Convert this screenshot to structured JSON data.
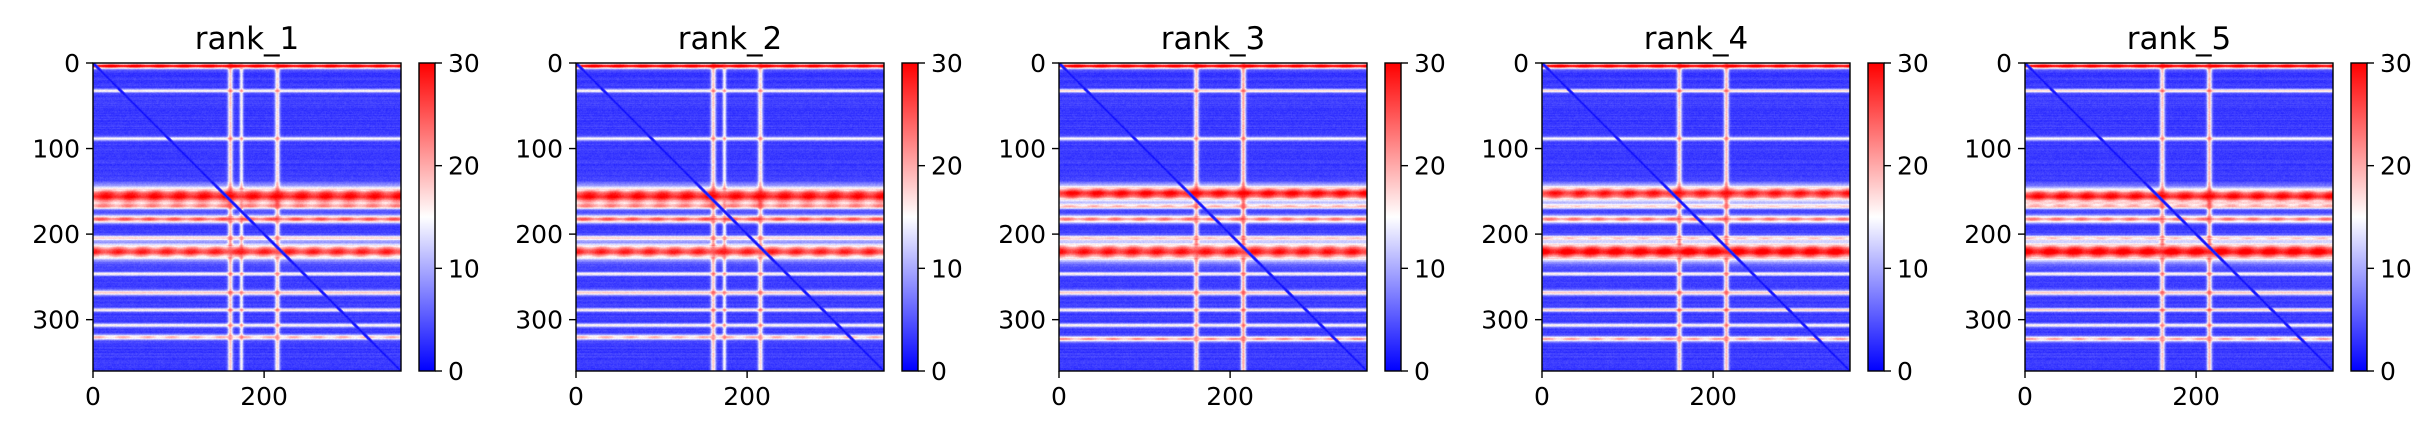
{
  "chart_data": [
    {
      "type": "heatmap",
      "title": "rank_1",
      "matrix_size": 360,
      "x_ticks": [
        0,
        200
      ],
      "y_ticks": [
        0,
        100,
        200,
        300
      ],
      "colorbar": {
        "min": 0,
        "max": 30,
        "ticks": [
          0,
          10,
          20,
          30
        ],
        "colormap": "bwr"
      },
      "description": "Pairwise matrix; mostly low values (blue) with a diagonal line, vertical low-mid streaks near x=160 and x=215, and high-value (red) horizontal bands near y=155 and y=220 with a weaker band near y=180.",
      "features": {
        "background": 2,
        "h_bands": [
          [
            3,
            30,
            2
          ],
          [
            32,
            12,
            1.5
          ],
          [
            88,
            12,
            1.5
          ],
          [
            155,
            27,
            7
          ],
          [
            167,
            14,
            2
          ],
          [
            182,
            22,
            3
          ],
          [
            204,
            14,
            2
          ],
          [
            220,
            25,
            6
          ],
          [
            246,
            13,
            1.5
          ],
          [
            268,
            15,
            2
          ],
          [
            288,
            13,
            1.5
          ],
          [
            306,
            13,
            1.5
          ],
          [
            320,
            17,
            2
          ]
        ],
        "v_bands": [
          [
            160,
            15,
            2
          ],
          [
            173,
            12,
            1.5
          ],
          [
            215,
            14,
            2
          ]
        ],
        "diag_value": 0
      }
    },
    {
      "type": "heatmap",
      "title": "rank_2",
      "matrix_size": 360,
      "x_ticks": [
        0,
        200
      ],
      "y_ticks": [
        0,
        100,
        200,
        300
      ],
      "colorbar": {
        "min": 0,
        "max": 30,
        "ticks": [
          0,
          10,
          20,
          30
        ],
        "colormap": "bwr"
      },
      "description": "Nearly identical pattern to rank_1; strong red bands near y=155 and y=220, vertical streaks near x=160 and x=215.",
      "features": {
        "background": 2,
        "h_bands": [
          [
            3,
            30,
            2
          ],
          [
            32,
            12,
            1.5
          ],
          [
            88,
            12,
            1.5
          ],
          [
            155,
            27,
            7
          ],
          [
            167,
            14,
            2
          ],
          [
            182,
            22,
            3
          ],
          [
            204,
            14,
            2
          ],
          [
            220,
            25,
            6
          ],
          [
            246,
            13,
            1.5
          ],
          [
            268,
            15,
            2
          ],
          [
            288,
            13,
            1.5
          ],
          [
            306,
            13,
            1.5
          ],
          [
            320,
            17,
            2
          ]
        ],
        "v_bands": [
          [
            160,
            15,
            2
          ],
          [
            173,
            12,
            1.5
          ],
          [
            215,
            14,
            2
          ]
        ],
        "diag_value": 0
      }
    },
    {
      "type": "heatmap",
      "title": "rank_3",
      "matrix_size": 360,
      "x_ticks": [
        0,
        200
      ],
      "y_ticks": [
        0,
        100,
        200,
        300
      ],
      "colorbar": {
        "min": 0,
        "max": 30,
        "ticks": [
          0,
          10,
          20,
          30
        ],
        "colormap": "bwr"
      },
      "description": "Similar pattern; red bands near y=152 and y=220, a weaker pinkish band near y=320, strong vertical streaks near x=160 and x=215.",
      "features": {
        "background": 2,
        "h_bands": [
          [
            3,
            30,
            2
          ],
          [
            32,
            14,
            1.5
          ],
          [
            88,
            12,
            1.5
          ],
          [
            152,
            27,
            6
          ],
          [
            167,
            16,
            2
          ],
          [
            182,
            20,
            3
          ],
          [
            204,
            14,
            2
          ],
          [
            220,
            26,
            7
          ],
          [
            246,
            13,
            1.5
          ],
          [
            268,
            15,
            2
          ],
          [
            288,
            13,
            1.5
          ],
          [
            306,
            13,
            1.5
          ],
          [
            322,
            19,
            2
          ]
        ],
        "v_bands": [
          [
            160,
            15,
            2
          ],
          [
            215,
            17,
            2
          ]
        ],
        "diag_value": 0
      }
    },
    {
      "type": "heatmap",
      "title": "rank_4",
      "matrix_size": 360,
      "x_ticks": [
        0,
        200
      ],
      "y_ticks": [
        0,
        100,
        200,
        300
      ],
      "colorbar": {
        "min": 0,
        "max": 30,
        "ticks": [
          0,
          10,
          20,
          30
        ],
        "colormap": "bwr"
      },
      "description": "Similar pattern; strongest red band near y=220, red band near y=152, vertical streaks near x=160 and x=215.",
      "features": {
        "background": 2,
        "h_bands": [
          [
            3,
            30,
            2
          ],
          [
            32,
            14,
            1.5
          ],
          [
            88,
            12,
            1.5
          ],
          [
            152,
            26,
            6
          ],
          [
            167,
            14,
            2
          ],
          [
            182,
            20,
            3
          ],
          [
            204,
            14,
            2
          ],
          [
            220,
            28,
            7
          ],
          [
            246,
            13,
            1.5
          ],
          [
            268,
            15,
            2
          ],
          [
            288,
            15,
            1.5
          ],
          [
            306,
            13,
            1.5
          ],
          [
            322,
            18,
            2
          ]
        ],
        "v_bands": [
          [
            160,
            15,
            2
          ],
          [
            215,
            16,
            2
          ]
        ],
        "diag_value": 0
      }
    },
    {
      "type": "heatmap",
      "title": "rank_5",
      "matrix_size": 360,
      "x_ticks": [
        0,
        200
      ],
      "y_ticks": [
        0,
        100,
        200,
        300
      ],
      "colorbar": {
        "min": 0,
        "max": 30,
        "ticks": [
          0,
          10,
          20,
          30
        ],
        "colormap": "bwr"
      },
      "description": "Similar pattern to rank_4; strong red bands near y=155 and y=220, vertical streaks near x=160 and x=215.",
      "features": {
        "background": 2,
        "h_bands": [
          [
            3,
            30,
            2
          ],
          [
            32,
            14,
            1.5
          ],
          [
            88,
            12,
            1.5
          ],
          [
            155,
            27,
            6
          ],
          [
            167,
            14,
            2
          ],
          [
            182,
            20,
            3
          ],
          [
            204,
            14,
            2
          ],
          [
            220,
            28,
            7
          ],
          [
            246,
            13,
            1.5
          ],
          [
            268,
            15,
            2
          ],
          [
            288,
            15,
            1.5
          ],
          [
            306,
            13,
            1.5
          ],
          [
            322,
            18,
            2
          ]
        ],
        "v_bands": [
          [
            160,
            15,
            2
          ],
          [
            215,
            16,
            2
          ]
        ],
        "diag_value": 0
      }
    }
  ]
}
